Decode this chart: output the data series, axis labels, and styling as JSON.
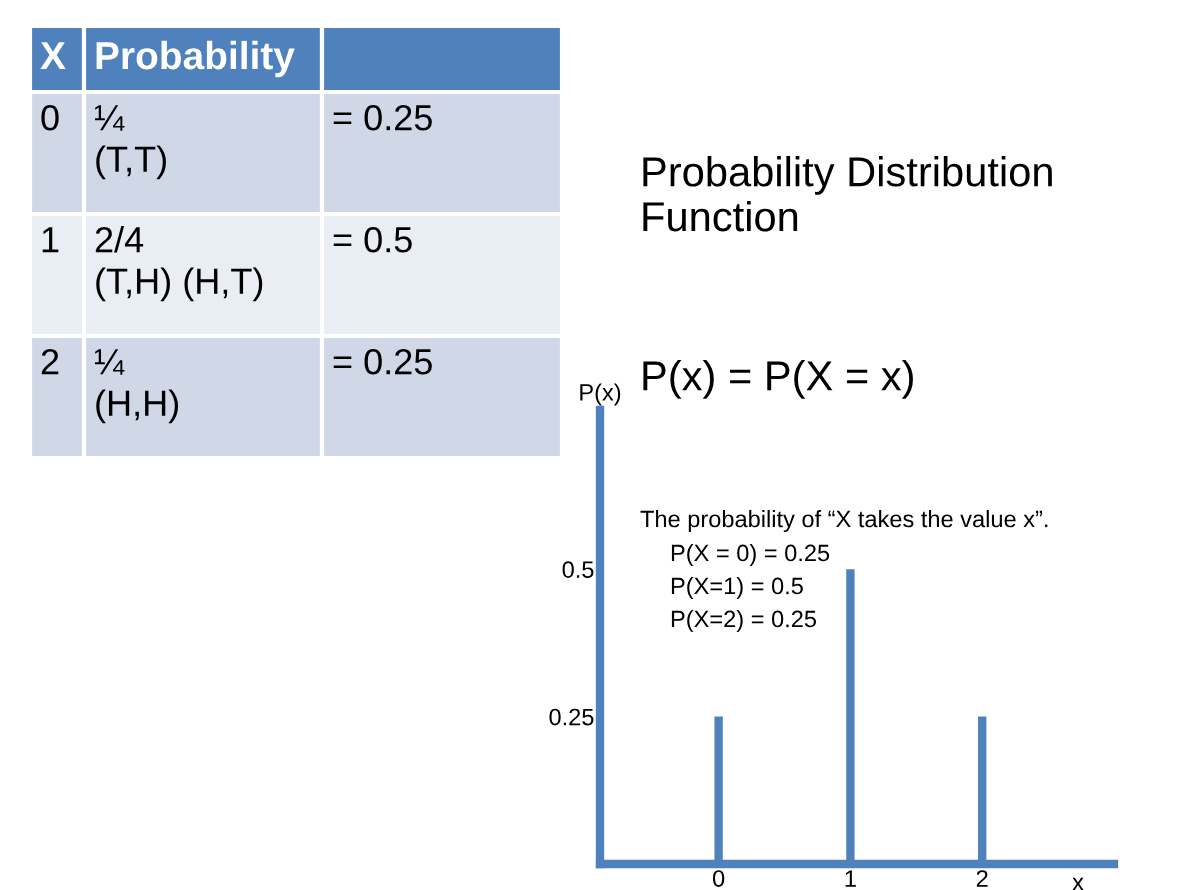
{
  "chart_data": {
    "type": "bar",
    "title": "Probability Distribution Function",
    "subtitle": "P(x) = P(X = x)",
    "xlabel": "x",
    "ylabel": "P(x)",
    "x": [
      0,
      1,
      2
    ],
    "values": [
      0.25,
      0.5,
      0.25
    ],
    "color": "#4f81bd",
    "xlim": [
      -0.9,
      3
    ],
    "xticks": [
      0,
      1,
      2
    ],
    "ylim": [
      0,
      0.77
    ],
    "yticks": [
      0.25,
      0.5
    ],
    "grid": false,
    "legend": false,
    "annotations": [
      "X",
      "Probability",
      "0",
      "¼\n(T,T)",
      "= 0.25",
      "1",
      "2/4\n(T,H) (H,T)",
      "= 0.5",
      "2",
      "¼\n(H,H)",
      "= 0.25",
      "The probability of “X takes the value x”.",
      "P(X = 0) = 0.25",
      "P(X=1) = 0.5",
      "P(X=2) = 0.25"
    ]
  }
}
